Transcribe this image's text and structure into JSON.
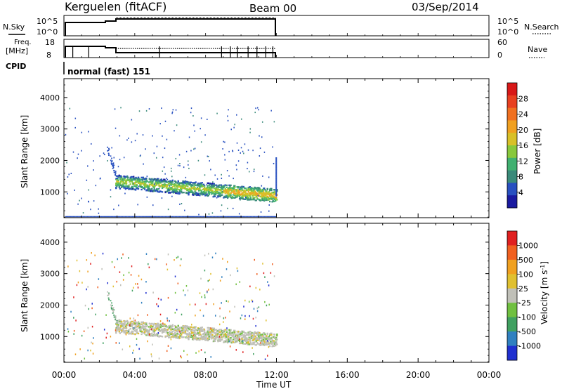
{
  "header": {
    "station": "Kerguelen (fitACF)",
    "beam": "Beam 00",
    "date": "03/Sep/2014"
  },
  "noise_panel": {
    "left_label": "N.Sky",
    "right_label": "N.Search",
    "left_ticks": [
      "10^5",
      "10^0"
    ],
    "right_ticks": [
      "10^5",
      "10^0"
    ]
  },
  "freq_panel": {
    "left_label_line1": "Freq.",
    "left_label_line2": "[MHz]",
    "left_ticks": [
      "18",
      "8"
    ],
    "right_label": "Nave",
    "right_ticks": [
      "60",
      "0"
    ]
  },
  "cpid": {
    "label": "CPID",
    "value": "normal (fast) 151"
  },
  "x_axis": {
    "title": "Time UT",
    "ticks": [
      "00:00",
      "04:00",
      "08:00",
      "12:00",
      "16:00",
      "20:00",
      "00:00"
    ]
  },
  "power_panel": {
    "y_title": "Slant Range [km]",
    "y_ticks": [
      "4000",
      "3000",
      "2000",
      "1000"
    ],
    "colorbar_title": "Power [dB]",
    "colorbar_ticks": [
      "28",
      "24",
      "20",
      "16",
      "12",
      "8",
      "4"
    ]
  },
  "velocity_panel": {
    "y_title": "Slant Range [km]",
    "y_ticks": [
      "4000",
      "3000",
      "2000",
      "1000"
    ],
    "colorbar_title": "Velocity [m s",
    "colorbar_exp": "-1",
    "colorbar_ticks": [
      "1000",
      "500",
      "100",
      "25",
      "-25",
      "-100",
      "-500",
      "-1000"
    ]
  },
  "chart_data": {
    "type": "heatmap",
    "x_range_hours": [
      0,
      24
    ],
    "y_range_km": [
      180,
      4600
    ],
    "data_coverage_hours": [
      0,
      12
    ],
    "power_scale_db": [
      0,
      32
    ],
    "power_colors": [
      "#1a1aa0",
      "#2850c0",
      "#3a8a7a",
      "#40b070",
      "#88c83c",
      "#d8c028",
      "#f0a020",
      "#f07020",
      "#e84020",
      "#d81818"
    ],
    "velocity_colors": [
      "#2030d0",
      "#3080c0",
      "#40a060",
      "#70c040",
      "#c0c0b8",
      "#e0c030",
      "#f0a020",
      "#f06020",
      "#e02020"
    ],
    "main_echo_band": {
      "start_range_km": 1350,
      "end_range_km": 900,
      "time_hours": [
        2.9,
        12.0
      ],
      "peak_power_db": 20
    },
    "noise_sky_log_level": 5,
    "frequency_mhz": 12,
    "nave_typical": 23
  }
}
